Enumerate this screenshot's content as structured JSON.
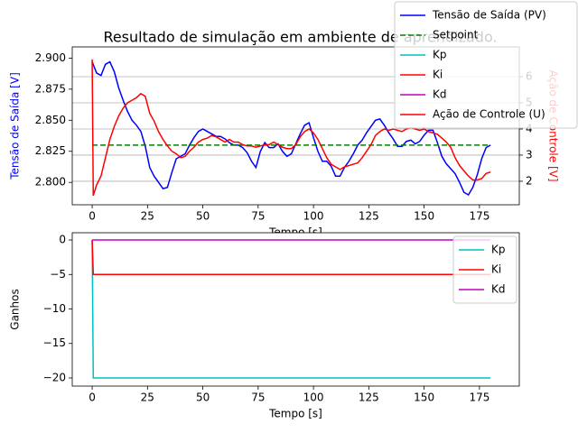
{
  "chart_data": [
    {
      "type": "line",
      "title": "Resultado de simulação em ambiente de aprendizado.",
      "xlabel": "Tempo [s]",
      "ylabel": "Tensão de Saída [V]",
      "ylabel_color": "#0000ff",
      "y2label": "Ação de Controle [V]",
      "y2label_color": "#ff0000",
      "xlim": [
        -9,
        193
      ],
      "xticks": [
        0,
        25,
        50,
        75,
        100,
        125,
        150,
        175
      ],
      "ylim": [
        2.782,
        2.909
      ],
      "yticks": [
        {
          "value": 2.8,
          "label": "2.800"
        },
        {
          "value": 2.825,
          "label": "2.825"
        },
        {
          "value": 2.85,
          "label": "2.850"
        },
        {
          "value": 2.875,
          "label": "2.875"
        },
        {
          "value": 2.9,
          "label": "2.900"
        }
      ],
      "y2lim": [
        1.1,
        7.14
      ],
      "y2ticks": [
        2,
        3,
        4,
        5,
        6
      ],
      "grid": true,
      "grid_axis": "y2",
      "series": [
        {
          "name": "Tensão de Saída (PV)",
          "color": "#0000ff",
          "linestyle": "solid",
          "x": [
            0,
            2,
            4,
            6,
            8,
            10,
            12,
            14,
            16,
            18,
            20,
            22,
            24,
            26,
            28,
            30,
            32,
            34,
            36,
            38,
            40,
            42,
            44,
            46,
            48,
            50,
            52,
            54,
            56,
            58,
            60,
            62,
            64,
            66,
            68,
            70,
            72,
            74,
            76,
            78,
            80,
            82,
            84,
            86,
            88,
            90,
            92,
            94,
            96,
            98,
            100,
            102,
            104,
            106,
            108,
            110,
            112,
            114,
            116,
            118,
            120,
            122,
            124,
            126,
            128,
            130,
            132,
            134,
            136,
            138,
            140,
            142,
            144,
            146,
            148,
            150,
            152,
            154,
            156,
            158,
            160,
            162,
            164,
            166,
            168,
            170,
            172,
            174,
            176,
            178,
            180
          ],
          "values": [
            2.897,
            2.888,
            2.886,
            2.895,
            2.897,
            2.889,
            2.876,
            2.866,
            2.857,
            2.85,
            2.846,
            2.841,
            2.829,
            2.812,
            2.805,
            2.8,
            2.795,
            2.796,
            2.808,
            2.819,
            2.821,
            2.823,
            2.83,
            2.836,
            2.841,
            2.843,
            2.841,
            2.839,
            2.837,
            2.837,
            2.835,
            2.832,
            2.83,
            2.83,
            2.828,
            2.824,
            2.817,
            2.812,
            2.825,
            2.832,
            2.828,
            2.828,
            2.831,
            2.825,
            2.821,
            2.823,
            2.831,
            2.839,
            2.846,
            2.848,
            2.836,
            2.825,
            2.817,
            2.817,
            2.813,
            2.805,
            2.805,
            2.812,
            2.817,
            2.823,
            2.83,
            2.834,
            2.84,
            2.845,
            2.85,
            2.851,
            2.846,
            2.84,
            2.835,
            2.829,
            2.829,
            2.833,
            2.834,
            2.831,
            2.833,
            2.838,
            2.842,
            2.842,
            2.832,
            2.821,
            2.815,
            2.811,
            2.807,
            2.8,
            2.792,
            2.79,
            2.796,
            2.806,
            2.819,
            2.828,
            2.83
          ]
        },
        {
          "name": "Setpoint",
          "color": "#008000",
          "linestyle": "dashed",
          "x": [
            0,
            180
          ],
          "values": [
            2.83,
            2.83
          ]
        },
        {
          "name": "Ação de Controle (U)",
          "color": "#ff0000",
          "linestyle": "solid",
          "axis": "y2",
          "x": [
            0,
            0.5,
            2,
            4,
            6,
            8,
            10,
            12,
            14,
            16,
            18,
            20,
            22,
            24,
            26,
            28,
            30,
            32,
            34,
            36,
            38,
            40,
            42,
            44,
            46,
            48,
            50,
            52,
            54,
            56,
            58,
            60,
            62,
            64,
            66,
            68,
            70,
            72,
            74,
            76,
            78,
            80,
            82,
            84,
            86,
            88,
            90,
            92,
            94,
            96,
            98,
            100,
            102,
            104,
            106,
            108,
            110,
            112,
            114,
            116,
            118,
            120,
            122,
            124,
            126,
            128,
            130,
            132,
            134,
            136,
            138,
            140,
            142,
            144,
            146,
            148,
            150,
            152,
            154,
            156,
            158,
            160,
            162,
            164,
            166,
            168,
            170,
            172,
            174,
            176,
            178,
            180
          ],
          "values": [
            6.66,
            1.45,
            1.86,
            2.2,
            2.9,
            3.6,
            4.1,
            4.5,
            4.8,
            5.0,
            5.1,
            5.2,
            5.35,
            5.25,
            4.6,
            4.3,
            3.9,
            3.6,
            3.35,
            3.15,
            3.05,
            2.9,
            2.95,
            3.15,
            3.3,
            3.5,
            3.6,
            3.65,
            3.75,
            3.7,
            3.6,
            3.5,
            3.6,
            3.5,
            3.5,
            3.4,
            3.35,
            3.35,
            3.3,
            3.35,
            3.4,
            3.4,
            3.5,
            3.4,
            3.3,
            3.25,
            3.25,
            3.4,
            3.7,
            3.9,
            4.0,
            3.85,
            3.6,
            3.25,
            2.9,
            2.65,
            2.55,
            2.45,
            2.55,
            2.6,
            2.65,
            2.7,
            2.9,
            3.15,
            3.4,
            3.75,
            3.9,
            4.0,
            3.95,
            4.0,
            3.95,
            3.9,
            4.0,
            4.05,
            4.0,
            3.95,
            4.0,
            3.9,
            3.85,
            3.8,
            3.65,
            3.5,
            3.3,
            2.9,
            2.6,
            2.4,
            2.2,
            2.05,
            2.05,
            2.1,
            2.3,
            2.35
          ]
        }
      ]
    },
    {
      "type": "line",
      "xlabel": "Tempo [s]",
      "ylabel": "Ganhos",
      "xlim": [
        -9,
        193
      ],
      "xticks": [
        0,
        25,
        50,
        75,
        100,
        125,
        150,
        175
      ],
      "ylim": [
        -21.18,
        1.05
      ],
      "yticks": [
        {
          "value": -20,
          "label": "−20"
        },
        {
          "value": -15,
          "label": "−15"
        },
        {
          "value": -10,
          "label": "−10"
        },
        {
          "value": -5,
          "label": "−5"
        },
        0
      ],
      "grid": false,
      "legend": "upper right",
      "series": [
        {
          "name": "Kp",
          "color": "#00bfbf",
          "linestyle": "solid",
          "x": [
            0,
            0.5,
            180
          ],
          "values": [
            0,
            -20,
            -20
          ]
        },
        {
          "name": "Ki",
          "color": "#ff0000",
          "linestyle": "solid",
          "x": [
            0,
            0.5,
            180
          ],
          "values": [
            0,
            -5,
            -5
          ]
        },
        {
          "name": "Kd",
          "color": "#bf00bf",
          "linestyle": "solid",
          "x": [
            0,
            0.5,
            180
          ],
          "values": [
            0,
            0,
            0
          ]
        }
      ]
    }
  ]
}
